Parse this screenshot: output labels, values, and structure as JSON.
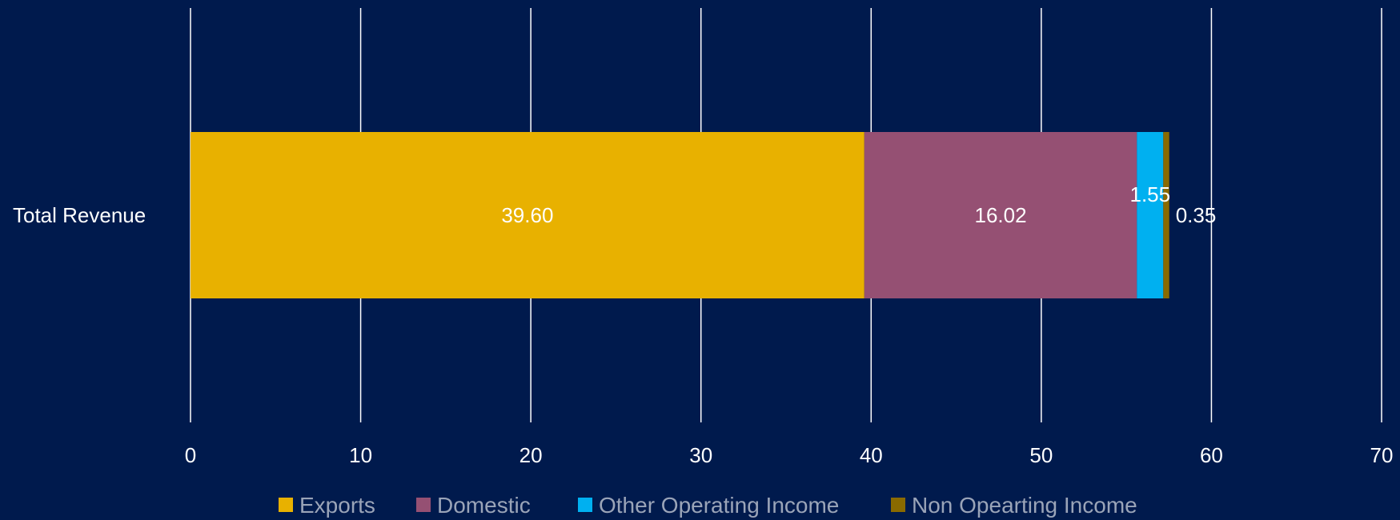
{
  "chart_data": {
    "type": "bar",
    "orientation": "horizontal",
    "stacked": true,
    "categories": [
      "Total Revenue"
    ],
    "series": [
      {
        "name": "Exports",
        "values": [
          39.6
        ],
        "label": "39.60",
        "color": "#e8b100"
      },
      {
        "name": "Domestic",
        "values": [
          16.02
        ],
        "label": "16.02",
        "color": "#955073"
      },
      {
        "name": "Other Operating Income",
        "values": [
          1.55
        ],
        "label": "1.55",
        "color": "#00b0f0"
      },
      {
        "name": "Non Opearting Income",
        "values": [
          0.35
        ],
        "label": "0.35",
        "color": "#8a6a00"
      }
    ],
    "xlim": [
      0,
      70
    ],
    "xticks": [
      "0",
      "10",
      "20",
      "30",
      "40",
      "50",
      "60",
      "70"
    ],
    "grid": true,
    "legend": "bottom",
    "background": "#001a4d"
  }
}
